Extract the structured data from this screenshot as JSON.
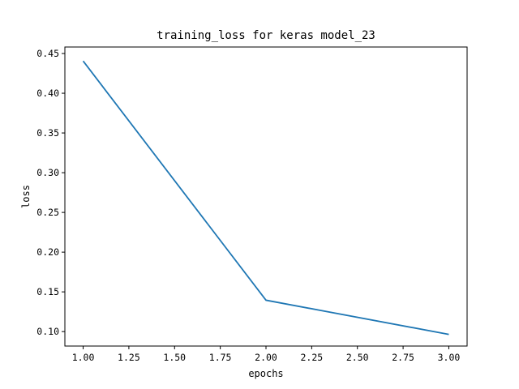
{
  "chart_data": {
    "type": "line",
    "title": "training_loss for keras model_23",
    "xlabel": "epochs",
    "ylabel": "loss",
    "xlim": [
      0.9,
      3.1
    ],
    "ylim": [
      0.0818,
      0.4582
    ],
    "xticks": [
      1.0,
      1.25,
      1.5,
      1.75,
      2.0,
      2.25,
      2.5,
      2.75,
      3.0
    ],
    "xtick_labels": [
      "1.00",
      "1.25",
      "1.50",
      "1.75",
      "2.00",
      "2.25",
      "2.50",
      "2.75",
      "3.00"
    ],
    "yticks": [
      0.1,
      0.15,
      0.2,
      0.25,
      0.3,
      0.35,
      0.4,
      0.45
    ],
    "ytick_labels": [
      "0.10",
      "0.15",
      "0.20",
      "0.25",
      "0.30",
      "0.35",
      "0.40",
      "0.45"
    ],
    "grid": false,
    "series": [
      {
        "x": [
          1,
          2,
          3
        ],
        "y": [
          0.4405,
          0.1395,
          0.0965
        ],
        "color": "#1f77b4"
      }
    ]
  }
}
